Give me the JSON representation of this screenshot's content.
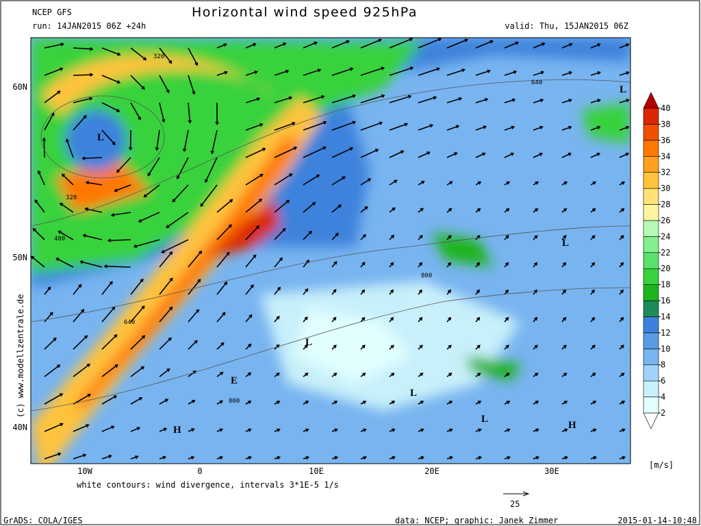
{
  "header": {
    "model": "NCEP GFS",
    "title": "Horizontal wind speed 925hPa",
    "run": "run: 14JAN2015 06Z +24h",
    "valid": "valid: Thu, 15JAN2015 06Z"
  },
  "map": {
    "lat_labels": [
      "60N",
      "50N",
      "40N"
    ],
    "lon_labels": [
      "10W",
      "0",
      "10E",
      "20E",
      "30E"
    ],
    "pressure_labels": [
      "L",
      "L",
      "L",
      "L",
      "L",
      "L",
      "H",
      "H",
      "E"
    ],
    "contour_labels": [
      "320",
      "320",
      "480",
      "640",
      "640",
      "800",
      "800"
    ],
    "watermark": "(c) www.modellzentrale.de"
  },
  "colorbar": {
    "levels": [
      2,
      4,
      6,
      8,
      10,
      12,
      14,
      16,
      18,
      20,
      22,
      24,
      26,
      28,
      30,
      32,
      34,
      36,
      38,
      40
    ],
    "colors": [
      "#ffffff",
      "#e1ffff",
      "#c8f0fa",
      "#a0d2fa",
      "#78b4f0",
      "#5a9be6",
      "#3c82dc",
      "#1e8c5a",
      "#1eb41e",
      "#37d23c",
      "#5ae16e",
      "#82f08c",
      "#b4fab4",
      "#fff5a0",
      "#ffe178",
      "#ffc33c",
      "#ffa01e",
      "#ff7800",
      "#f05000",
      "#dc2800",
      "#b40000"
    ],
    "unit": "[m/s]"
  },
  "footer": {
    "note": "white contours: wind divergence, intervals 3*1E-5 1/s",
    "reference_vector": "25",
    "grads": "GrADS: COLA/IGES",
    "credit": "data: NCEP; graphic: Janek Zimmer",
    "timestamp": "2015-01-14-10:48"
  }
}
